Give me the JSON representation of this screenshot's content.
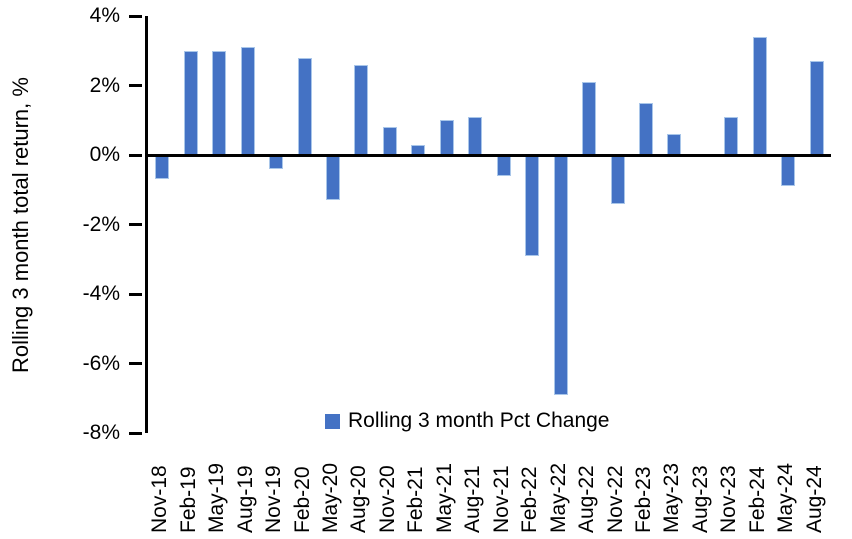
{
  "chart_data": {
    "type": "bar",
    "title": "",
    "xlabel": "",
    "ylabel": "Rolling 3 month total return, %",
    "ylim": [
      -8,
      4
    ],
    "ytick_step": 2,
    "yticks": [
      4,
      2,
      0,
      -2,
      -4,
      -6,
      -8
    ],
    "ytick_labels": [
      "4%",
      "2%",
      "0%",
      "-2%",
      "-4%",
      "-6%",
      "-8%"
    ],
    "grid": false,
    "legend_position": "bottom-center",
    "categories": [
      "Nov-18",
      "Feb-19",
      "May-19",
      "Aug-19",
      "Nov-19",
      "Feb-20",
      "May-20",
      "Aug-20",
      "Nov-20",
      "Feb-21",
      "May-21",
      "Aug-21",
      "Nov-21",
      "Feb-22",
      "May-22",
      "Aug-22",
      "Nov-22",
      "Feb-23",
      "May-23",
      "Aug-23",
      "Nov-23",
      "Feb-24",
      "May-24",
      "Aug-24"
    ],
    "series": [
      {
        "name": "Rolling 3 month Pct Change",
        "values": [
          -0.7,
          3.0,
          3.0,
          3.1,
          -0.4,
          2.8,
          -1.3,
          2.6,
          0.8,
          0.3,
          1.0,
          1.1,
          -0.6,
          -2.9,
          -6.9,
          2.1,
          -1.4,
          1.5,
          0.6,
          0.0,
          1.1,
          3.4,
          -0.9,
          2.7
        ]
      }
    ]
  },
  "legend": {
    "label": "Rolling 3 month Pct Change"
  },
  "colors": {
    "bar_fill": "#4472C4",
    "bar_border": "#A9C6E9",
    "axis": "#000000",
    "text": "#000000"
  }
}
